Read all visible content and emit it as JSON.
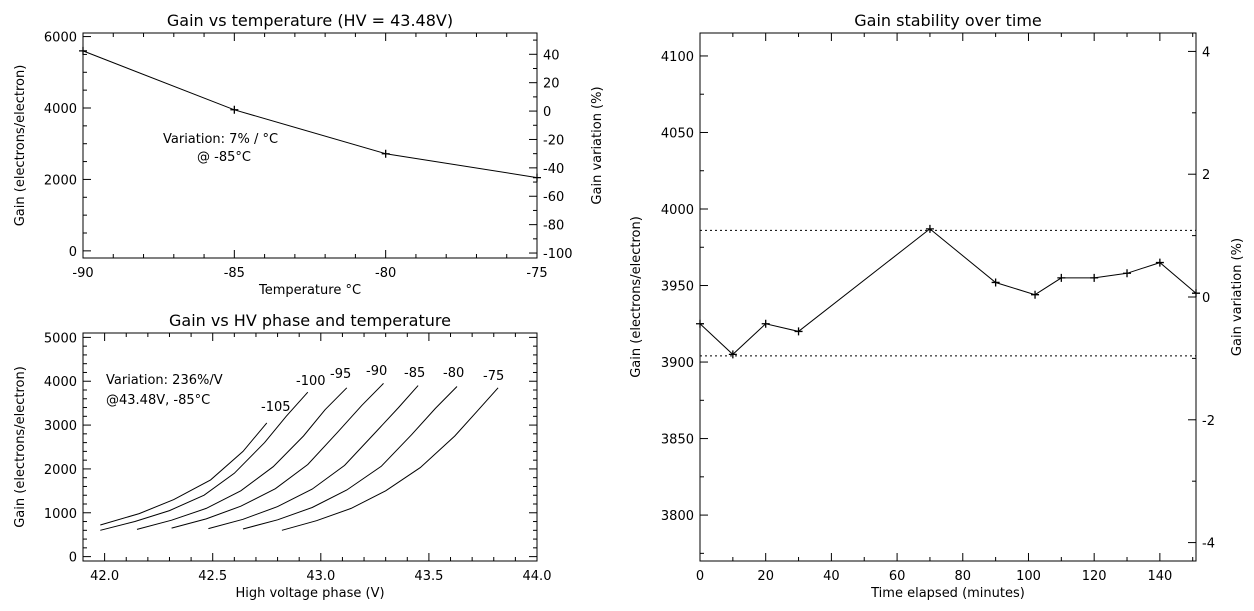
{
  "chart_data": [
    {
      "type": "line",
      "title": "Gain vs temperature (HV = 43.48V)",
      "xlabel": "Temperature °C",
      "ylabel": "Gain (electrons/electron)",
      "y2label": "Gain variation (%)",
      "xlim": [
        -90,
        -75
      ],
      "ylim": [
        -200,
        6100
      ],
      "y2lim": [
        -103.5,
        55
      ],
      "xticks": [
        "-90",
        "-85",
        "-80",
        "-75"
      ],
      "yticks": [
        "0",
        "2000",
        "4000",
        "6000"
      ],
      "y2ticks": [
        "40",
        "20",
        "0",
        "-20",
        "-40",
        "-60",
        "-80",
        "-100"
      ],
      "grid": false,
      "series": [
        {
          "x": [
            -90,
            -85,
            -80,
            -75
          ],
          "y": [
            5600,
            3950,
            2720,
            2050
          ],
          "markers": "plus"
        }
      ],
      "annotation": [
        "Variation: 7% / °C",
        "@ -85°C"
      ]
    },
    {
      "type": "line",
      "title": "Gain vs HV phase and temperature",
      "xlabel": "High voltage phase (V)",
      "ylabel": "Gain (electrons/electron)",
      "xlim": [
        41.9,
        44.0
      ],
      "ylim": [
        -100,
        5100
      ],
      "xticks": [
        "42.0",
        "42.5",
        "43.0",
        "43.5",
        "44.0"
      ],
      "yticks": [
        "0",
        "1000",
        "2000",
        "3000",
        "4000",
        "5000"
      ],
      "grid": false,
      "series": [
        {
          "name": "-105",
          "x": [
            41.98,
            42.16,
            42.32,
            42.49,
            42.64,
            42.75
          ],
          "y": [
            720,
            980,
            1300,
            1750,
            2400,
            3050
          ]
        },
        {
          "name": "-100",
          "x": [
            41.98,
            42.14,
            42.3,
            42.46,
            42.6,
            42.74,
            42.84,
            42.94
          ],
          "y": [
            600,
            800,
            1050,
            1400,
            1900,
            2600,
            3200,
            3750
          ]
        },
        {
          "name": "-95",
          "x": [
            42.15,
            42.31,
            42.47,
            42.63,
            42.78,
            42.92,
            43.02,
            43.12
          ],
          "y": [
            620,
            830,
            1100,
            1500,
            2050,
            2750,
            3350,
            3850
          ]
        },
        {
          "name": "-90",
          "x": [
            42.31,
            42.47,
            42.63,
            42.79,
            42.94,
            43.08,
            43.19,
            43.29
          ],
          "y": [
            650,
            860,
            1150,
            1550,
            2100,
            2850,
            3450,
            3950
          ]
        },
        {
          "name": "-85",
          "x": [
            42.48,
            42.64,
            42.8,
            42.96,
            43.11,
            43.25,
            43.36,
            43.45
          ],
          "y": [
            640,
            850,
            1140,
            1540,
            2080,
            2820,
            3400,
            3900
          ]
        },
        {
          "name": "-80",
          "x": [
            42.64,
            42.8,
            42.96,
            43.12,
            43.28,
            43.42,
            43.53,
            43.63
          ],
          "y": [
            630,
            840,
            1120,
            1520,
            2060,
            2780,
            3380,
            3880
          ]
        },
        {
          "name": "-75",
          "x": [
            42.82,
            42.98,
            43.14,
            43.3,
            43.46,
            43.62,
            43.72,
            43.82
          ],
          "y": [
            600,
            820,
            1100,
            1500,
            2030,
            2750,
            3300,
            3850
          ]
        }
      ],
      "curve_labels": [
        "-105",
        "-100",
        "-95",
        "-90",
        "-85",
        "-80",
        "-75"
      ],
      "annotation": [
        "Variation: 236%/V",
        "@43.48V, -85°C"
      ]
    },
    {
      "type": "line",
      "title": "Gain stability over time",
      "xlabel": "Time elapsed (minutes)",
      "ylabel": "Gain (electrons/electron)",
      "y2label": "Gain variation (%)",
      "xlim": [
        0,
        151
      ],
      "ylim": [
        3770,
        4115
      ],
      "y2lim": [
        -4.3,
        4.3
      ],
      "xticks": [
        "0",
        "20",
        "40",
        "60",
        "80",
        "100",
        "120",
        "140"
      ],
      "yticks": [
        "3800",
        "3850",
        "3900",
        "3950",
        "4000",
        "4050",
        "4100"
      ],
      "y2ticks": [
        "4",
        "2",
        "0",
        "-2",
        "-4"
      ],
      "grid": false,
      "series": [
        {
          "x": [
            0,
            10,
            20,
            30,
            70,
            90,
            102,
            110,
            120,
            130,
            140,
            151
          ],
          "y": [
            3925,
            3905,
            3925,
            3920,
            3987,
            3952,
            3944,
            3955,
            3955,
            3958,
            3965,
            3945
          ],
          "markers": "plus"
        }
      ],
      "reference_lines": [
        3986,
        3904
      ]
    }
  ]
}
